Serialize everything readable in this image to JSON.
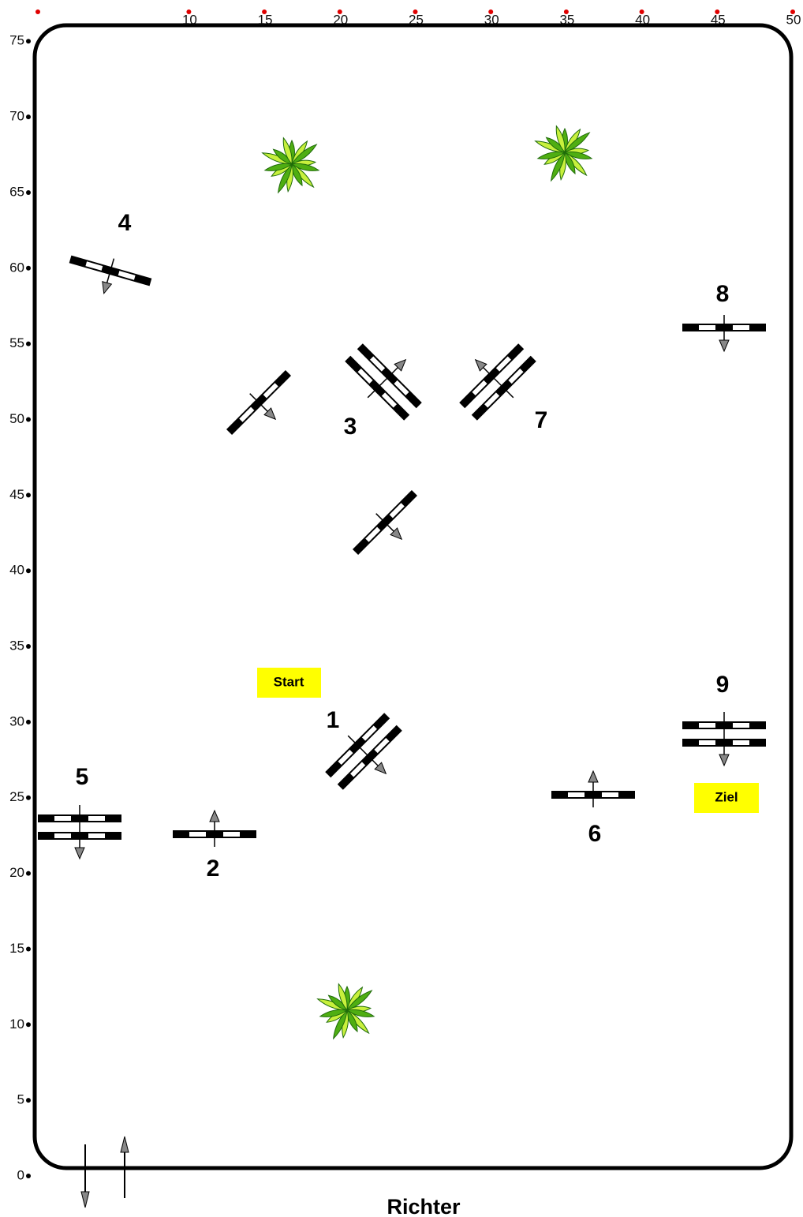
{
  "x_ticks": [
    10,
    15,
    20,
    25,
    30,
    35,
    40,
    45,
    50
  ],
  "y_ticks": [
    0,
    5,
    10,
    15,
    20,
    25,
    30,
    35,
    40,
    45,
    50,
    55,
    60,
    65,
    70,
    75
  ],
  "obstacles": [
    {
      "label": "1"
    },
    {
      "label": "2"
    },
    {
      "label": "3"
    },
    {
      "label": "4"
    },
    {
      "label": "5"
    },
    {
      "label": "6"
    },
    {
      "label": "7"
    },
    {
      "label": "8"
    },
    {
      "label": "9"
    }
  ],
  "start": "Start",
  "finish": "Ziel",
  "judge": "Richter"
}
